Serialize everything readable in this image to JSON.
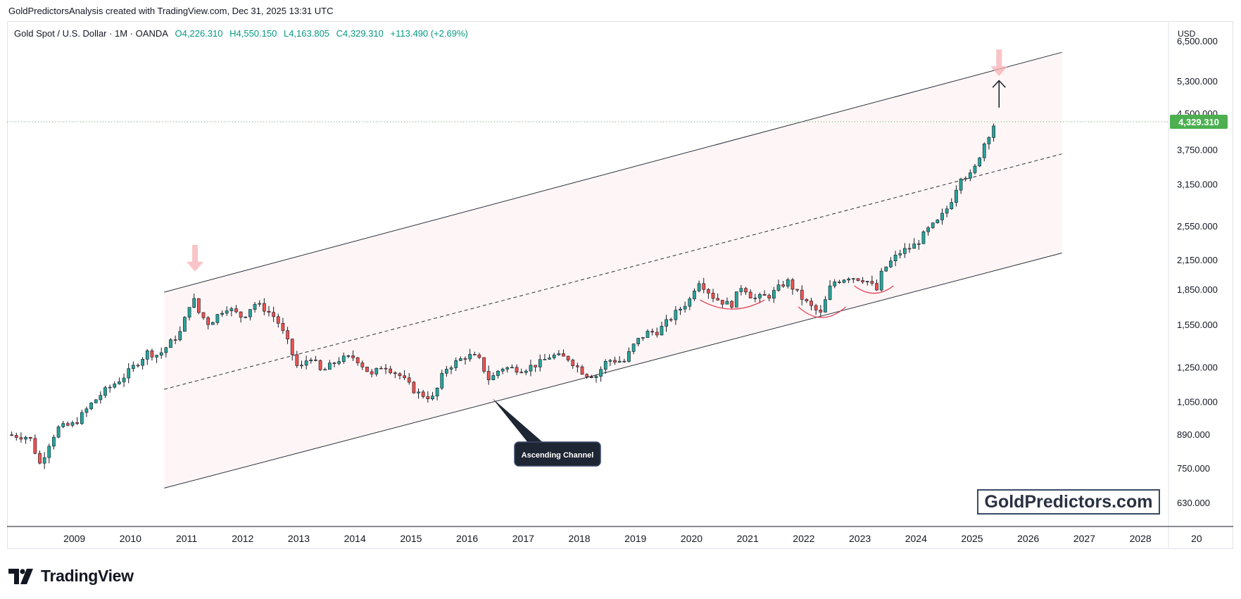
{
  "header": {
    "attribution": "GoldPredictorsAnalysis created with TradingView.com, Dec 31, 2025 13:31 UTC"
  },
  "legend": {
    "symbol": "Gold Spot / U.S. Dollar · 1M · OANDA",
    "open": "O4,226.310",
    "high": "H4,550.150",
    "low": "L4,163.805",
    "close": "C4,329.310",
    "change": "+113.490 (+2.69%)"
  },
  "price_axis": {
    "currency": "USD"
  },
  "annotations": {
    "channel_label": "Ascending Channel",
    "watermark": "GoldPredictors.com"
  },
  "footer": {
    "brand": "TradingView"
  },
  "colors": {
    "up": "#26a69a",
    "down": "#ef5350",
    "last_price_bg": "#4caf50",
    "channel_fill": "#fdeeee",
    "arrow_pink": "#f7b0b4",
    "arc_red": "#e53950"
  },
  "chart_data": {
    "type": "candlestick",
    "symbol": "Gold Spot / U.S. Dollar",
    "timeframe": "1M",
    "y_scale": "log",
    "ylim": [
      560,
      7200
    ],
    "xlim": [
      2008.3,
      2029.0
    ],
    "x_ticks": [
      "2009",
      "2010",
      "2011",
      "2012",
      "2013",
      "2014",
      "2015",
      "2016",
      "2017",
      "2018",
      "2019",
      "2020",
      "2021",
      "2022",
      "2023",
      "2024",
      "2025",
      "2026",
      "2027",
      "2028",
      "20"
    ],
    "y_ticks": [
      "6,500.000",
      "5,300.000",
      "4,500.000",
      "3,750.000",
      "3,150.000",
      "2,550.000",
      "2,150.000",
      "1,850.000",
      "1,550.000",
      "1,250.000",
      "1,050.000",
      "890.000",
      "750.000",
      "630.000"
    ],
    "last_price": 4329.31,
    "last_price_label": "4,329.310",
    "close_path": [
      [
        2008.3,
        890
      ],
      [
        2008.7,
        880
      ],
      [
        2008.9,
        760
      ],
      [
        2009.0,
        830
      ],
      [
        2009.2,
        920
      ],
      [
        2009.5,
        940
      ],
      [
        2009.8,
        1040
      ],
      [
        2010.0,
        1100
      ],
      [
        2010.4,
        1200
      ],
      [
        2010.8,
        1350
      ],
      [
        2011.0,
        1330
      ],
      [
        2011.4,
        1500
      ],
      [
        2011.6,
        1800
      ],
      [
        2011.7,
        1660
      ],
      [
        2011.9,
        1560
      ],
      [
        2012.2,
        1700
      ],
      [
        2012.5,
        1610
      ],
      [
        2012.7,
        1730
      ],
      [
        2012.9,
        1680
      ],
      [
        2013.1,
        1600
      ],
      [
        2013.3,
        1420
      ],
      [
        2013.5,
        1230
      ],
      [
        2013.7,
        1330
      ],
      [
        2013.9,
        1220
      ],
      [
        2014.2,
        1300
      ],
      [
        2014.5,
        1320
      ],
      [
        2014.8,
        1200
      ],
      [
        2015.0,
        1270
      ],
      [
        2015.3,
        1200
      ],
      [
        2015.6,
        1100
      ],
      [
        2015.9,
        1070
      ],
      [
        2016.1,
        1240
      ],
      [
        2016.5,
        1330
      ],
      [
        2016.7,
        1310
      ],
      [
        2016.9,
        1170
      ],
      [
        2017.1,
        1250
      ],
      [
        2017.5,
        1240
      ],
      [
        2017.8,
        1280
      ],
      [
        2018.0,
        1330
      ],
      [
        2018.3,
        1310
      ],
      [
        2018.6,
        1210
      ],
      [
        2018.8,
        1200
      ],
      [
        2019.0,
        1300
      ],
      [
        2019.3,
        1290
      ],
      [
        2019.5,
        1420
      ],
      [
        2019.7,
        1490
      ],
      [
        2019.9,
        1500
      ],
      [
        2020.2,
        1640
      ],
      [
        2020.5,
        1780
      ],
      [
        2020.6,
        1960
      ],
      [
        2020.9,
        1780
      ],
      [
        2021.2,
        1710
      ],
      [
        2021.4,
        1900
      ],
      [
        2021.6,
        1770
      ],
      [
        2021.9,
        1800
      ],
      [
        2022.2,
        1940
      ],
      [
        2022.4,
        1810
      ],
      [
        2022.6,
        1710
      ],
      [
        2022.8,
        1640
      ],
      [
        2023.0,
        1920
      ],
      [
        2023.3,
        1980
      ],
      [
        2023.6,
        1950
      ],
      [
        2023.8,
        1850
      ],
      [
        2023.9,
        2040
      ],
      [
        2024.2,
        2230
      ],
      [
        2024.5,
        2330
      ],
      [
        2024.7,
        2500
      ],
      [
        2024.9,
        2620
      ],
      [
        2025.1,
        2850
      ],
      [
        2025.3,
        3300
      ],
      [
        2025.5,
        3300
      ],
      [
        2025.7,
        3850
      ],
      [
        2025.9,
        4300
      ],
      [
        2025.95,
        4329.31
      ]
    ],
    "latest_candle": {
      "open": 4226.31,
      "high": 4550.15,
      "low": 4163.805,
      "close": 4329.31
    },
    "channel": {
      "upper": [
        [
          2011.1,
          1830
        ],
        [
          2027.1,
          6150
        ]
      ],
      "middle": [
        [
          2011.1,
          1120
        ],
        [
          2027.1,
          3680
        ]
      ],
      "lower": [
        [
          2011.1,
          680
        ],
        [
          2027.1,
          2230
        ]
      ]
    }
  }
}
